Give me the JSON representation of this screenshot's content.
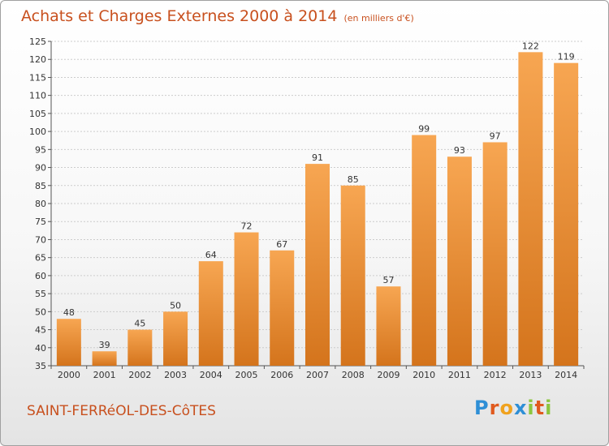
{
  "header": {
    "title": "Achats et Charges Externes 2000 à 2014",
    "unit": "(en milliers d'€)"
  },
  "footer": {
    "commune": "SAINT-FERRéOL-DES-CôTES",
    "logo": [
      "P",
      "r",
      "o",
      "x",
      "i",
      "t",
      "i"
    ]
  },
  "colors": {
    "bar_light": "#f7a652",
    "bar_dark": "#d4741c",
    "title": "#c8501e",
    "logo": [
      "#2e8fd6",
      "#e05a1e",
      "#f0a21e",
      "#2e8fd6",
      "#8cc63f",
      "#e05a1e",
      "#8cc63f"
    ]
  },
  "chart_data": {
    "type": "bar",
    "title": "Achats et Charges Externes 2000 à 2014",
    "unit": "(en milliers d'€)",
    "categories": [
      "2000",
      "2001",
      "2002",
      "2003",
      "2004",
      "2005",
      "2006",
      "2007",
      "2008",
      "2009",
      "2010",
      "2011",
      "2012",
      "2013",
      "2014"
    ],
    "values": [
      48,
      39,
      45,
      50,
      64,
      72,
      67,
      91,
      85,
      57,
      99,
      93,
      97,
      122,
      119
    ],
    "ylim": [
      35,
      125
    ],
    "ytick_step": 5,
    "grid": true,
    "legend": false
  }
}
